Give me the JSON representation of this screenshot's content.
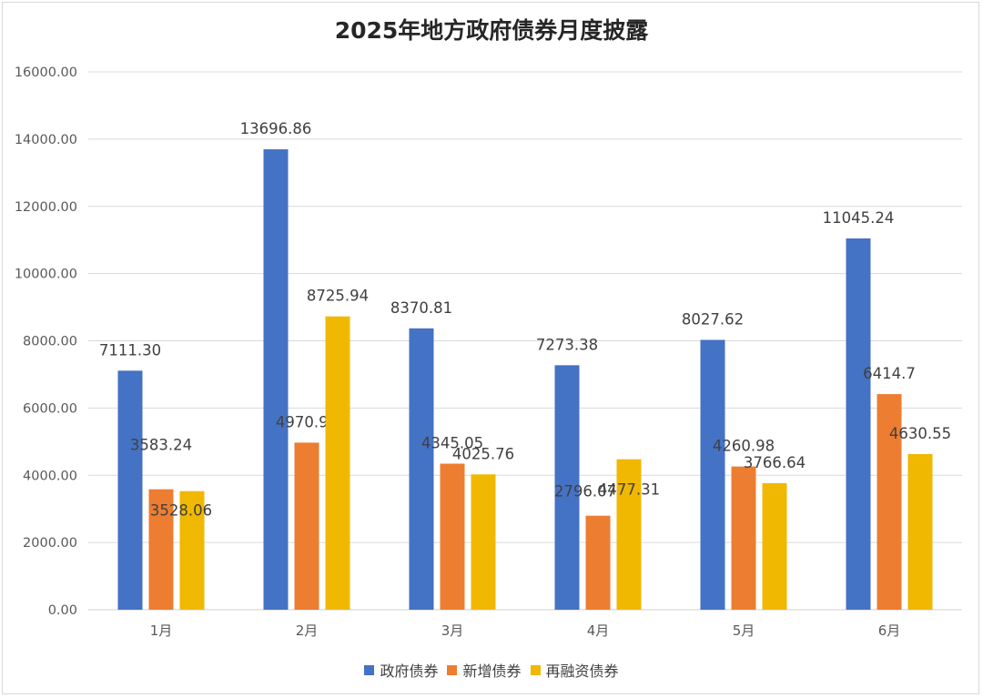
{
  "chart_data": {
    "type": "bar",
    "title": "2025年地方政府债券月度披露",
    "categories": [
      "1月",
      "2月",
      "3月",
      "4月",
      "5月",
      "6月"
    ],
    "ylim": [
      0,
      16000
    ],
    "yticks": [
      "0.00",
      "2000.00",
      "4000.00",
      "6000.00",
      "8000.00",
      "10000.00",
      "12000.00",
      "14000.00",
      "16000.00"
    ],
    "grid": true,
    "legend_position": "bottom",
    "series": [
      {
        "name": "政府债券",
        "color": "#4472c4",
        "values": [
          7111.3,
          13696.86,
          8370.81,
          7273.38,
          8027.62,
          11045.24
        ],
        "labels": [
          "7111.30",
          "13696.86",
          "8370.81",
          "7273.38",
          "8027.62",
          "11045.24"
        ]
      },
      {
        "name": "新增债券",
        "color": "#ed7d31",
        "values": [
          3583.24,
          4970.91,
          4345.05,
          2796.07,
          4260.98,
          6414.7
        ],
        "labels": [
          "3583.24",
          "4970.91",
          "4345.05",
          "2796.07",
          "4260.98",
          "6414.7"
        ]
      },
      {
        "name": "再融资债券",
        "color": "#f0b800",
        "values": [
          3528.06,
          8725.94,
          4025.76,
          4477.31,
          3766.64,
          4630.55
        ],
        "labels": [
          "3528.06",
          "8725.94",
          "4025.76",
          "4477.31",
          "3766.64",
          "4630.55"
        ]
      }
    ]
  }
}
